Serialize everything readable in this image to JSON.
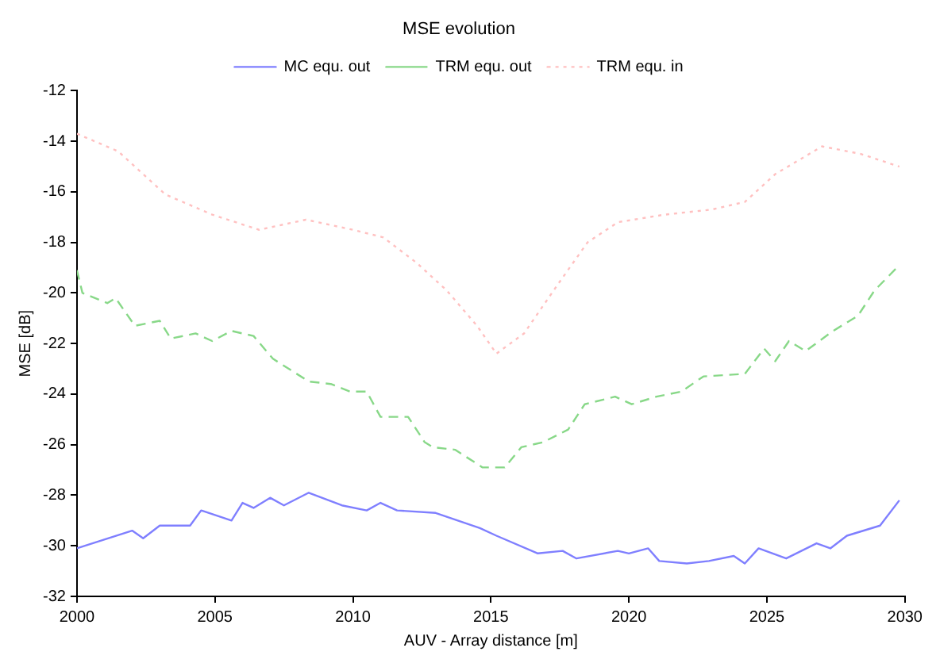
{
  "chart_data": {
    "type": "line",
    "title": "MSE evolution",
    "xlabel": "AUV - Array distance [m]",
    "ylabel": "MSE [dB]",
    "xlim": [
      2000,
      2030
    ],
    "xticks": [
      2000,
      2005,
      2010,
      2015,
      2020,
      2025,
      2030
    ],
    "ylim": [
      -32,
      -12
    ],
    "yticks": [
      -32,
      -30,
      -28,
      -26,
      -24,
      -22,
      -20,
      -18,
      -16,
      -14,
      -12
    ],
    "grid": false,
    "legend": "top",
    "marker": "none",
    "series": [
      {
        "name": "MC equ. out",
        "color": "#7f7fff",
        "line_style": "solid",
        "x": [
          2000,
          2002.0,
          2002.4,
          2003.0,
          2004.1,
          2004.5,
          2005.6,
          2006.0,
          2006.4,
          2007.0,
          2007.5,
          2008.4,
          2009.6,
          2010.5,
          2011.0,
          2011.6,
          2013.0,
          2014.6,
          2015.2,
          2016.7,
          2017.6,
          2018.1,
          2019.6,
          2020.0,
          2020.7,
          2021.1,
          2022.1,
          2022.9,
          2023.8,
          2024.2,
          2024.7,
          2025.7,
          2026.8,
          2027.3,
          2027.9,
          2029.1,
          2029.8
        ],
        "values": [
          -30.1,
          -29.4,
          -29.7,
          -29.2,
          -29.2,
          -28.6,
          -29.0,
          -28.3,
          -28.5,
          -28.1,
          -28.4,
          -27.9,
          -28.4,
          -28.6,
          -28.3,
          -28.6,
          -28.7,
          -29.3,
          -29.6,
          -30.3,
          -30.2,
          -30.5,
          -30.2,
          -30.3,
          -30.1,
          -30.6,
          -30.7,
          -30.6,
          -30.4,
          -30.7,
          -30.1,
          -30.5,
          -29.9,
          -30.1,
          -29.6,
          -29.2,
          -28.2
        ]
      },
      {
        "name": "TRM equ. out",
        "color": "#88d888",
        "line_style": "dashed",
        "x": [
          2000,
          2000.2,
          2001.1,
          2001.4,
          2002.1,
          2003.0,
          2003.4,
          2004.3,
          2004.9,
          2005.6,
          2006.4,
          2007.1,
          2008.4,
          2009.2,
          2009.9,
          2010.5,
          2011.0,
          2012.0,
          2012.6,
          2012.9,
          2013.7,
          2014.7,
          2015.5,
          2016.1,
          2016.9,
          2017.8,
          2018.4,
          2019.5,
          2020.1,
          2021.0,
          2021.9,
          2022.7,
          2024.2,
          2024.9,
          2025.3,
          2025.8,
          2026.4,
          2027.4,
          2028.3,
          2028.9,
          2029.8
        ],
        "values": [
          -19.1,
          -20.0,
          -20.4,
          -20.2,
          -21.3,
          -21.1,
          -21.8,
          -21.6,
          -21.9,
          -21.5,
          -21.7,
          -22.6,
          -23.5,
          -23.6,
          -23.9,
          -23.9,
          -24.9,
          -24.9,
          -25.9,
          -26.1,
          -26.2,
          -26.9,
          -26.9,
          -26.1,
          -25.9,
          -25.4,
          -24.4,
          -24.1,
          -24.4,
          -24.1,
          -23.9,
          -23.3,
          -23.2,
          -22.2,
          -22.7,
          -21.9,
          -22.3,
          -21.5,
          -20.9,
          -19.9,
          -18.9
        ]
      },
      {
        "name": "TRM equ. in",
        "color": "#ffc0c0",
        "line_style": "dotted",
        "x": [
          2000,
          2001.5,
          2003.2,
          2004.9,
          2006.6,
          2008.3,
          2010.0,
          2011.1,
          2012.3,
          2013.4,
          2014.5,
          2015.2,
          2016.2,
          2017.4,
          2018.5,
          2019.6,
          2021.3,
          2023.0,
          2024.2,
          2025.3,
          2027.0,
          2028.4,
          2029.8
        ],
        "values": [
          -13.7,
          -14.4,
          -16.1,
          -16.9,
          -17.5,
          -17.1,
          -17.5,
          -17.8,
          -18.8,
          -19.9,
          -21.3,
          -22.4,
          -21.6,
          -19.7,
          -18.0,
          -17.2,
          -16.9,
          -16.7,
          -16.4,
          -15.3,
          -14.2,
          -14.5,
          -15.0
        ]
      }
    ]
  }
}
